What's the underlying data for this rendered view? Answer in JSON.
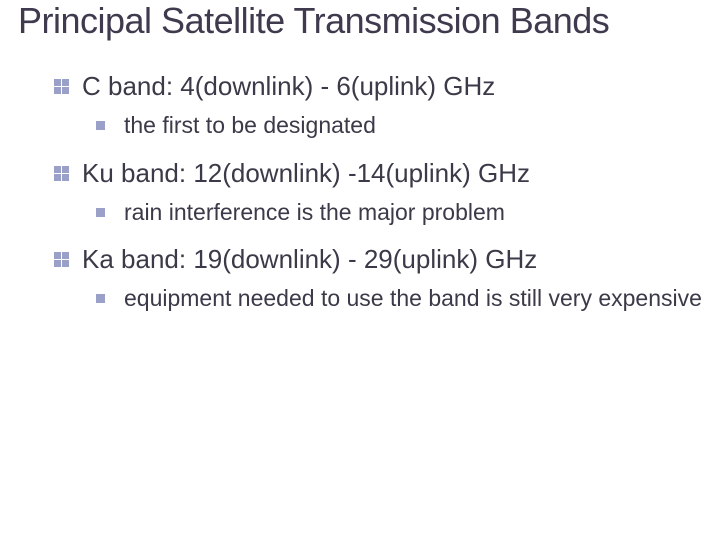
{
  "slide": {
    "title": "Principal Satellite Transmission Bands",
    "items": [
      {
        "label": "C band: 4(downlink) - 6(uplink) GHz",
        "sub": "the first to be designated"
      },
      {
        "label": "Ku band: 12(downlink) -14(uplink) GHz",
        "sub": "rain interference is the major problem"
      },
      {
        "label": "Ka band: 19(downlink) - 29(uplink) GHz",
        "sub": "equipment needed to use the band is still very expensive"
      }
    ]
  },
  "style": {
    "title_color": "#3f3a4d",
    "text_color": "#3a3a48",
    "bullet_color": "#9aa0c8",
    "background_color": "#ffffff",
    "title_fontsize": 36,
    "l1_fontsize": 26,
    "l2_fontsize": 23
  }
}
